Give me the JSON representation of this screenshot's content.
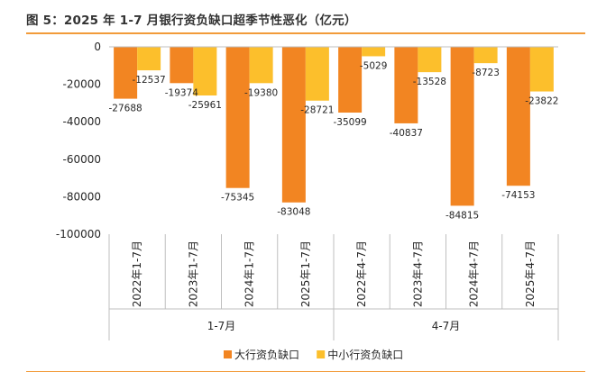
{
  "title": "图 5：2025 年 1-7 月银行资负缺口超季节性恶化（亿元）",
  "chart_data": {
    "type": "bar",
    "categories": [
      "2022年1-7月",
      "2023年1-7月",
      "2024年1-7月",
      "2025年1-7月",
      "2022年4-7月",
      "2023年4-7月",
      "2024年4-7月",
      "2025年4-7月"
    ],
    "groups": [
      {
        "label": "1-7月",
        "span": [
          0,
          3
        ]
      },
      {
        "label": "4-7月",
        "span": [
          4,
          7
        ]
      }
    ],
    "series": [
      {
        "name": "大行资负缺口",
        "color": "#f28522",
        "values": [
          -27688,
          -19374,
          -75345,
          -83048,
          -35099,
          -40837,
          -84815,
          -74153
        ]
      },
      {
        "name": "中小行资负缺口",
        "color": "#fcbf2c",
        "values": [
          -12537,
          -25961,
          -19380,
          -28721,
          -5029,
          -13528,
          -8723,
          -23822
        ]
      }
    ],
    "value_labels": {
      "large": [
        "-27688",
        "-19374",
        "-75345",
        "-83048",
        "-35099",
        "-40837",
        "-84815",
        "-74153"
      ],
      "small": [
        "-12537",
        "-25961",
        "-19380",
        "-28721",
        "-5029",
        "-13528",
        "-8723",
        "-23822"
      ]
    },
    "ylim": [
      -100000,
      0
    ],
    "yticks": [
      0,
      -20000,
      -40000,
      -60000,
      -80000,
      -100000
    ],
    "ytick_labels": [
      "0",
      "-20000",
      "-40000",
      "-60000",
      "-80000",
      "-100000"
    ],
    "legend_position": "bottom",
    "grid": false
  }
}
